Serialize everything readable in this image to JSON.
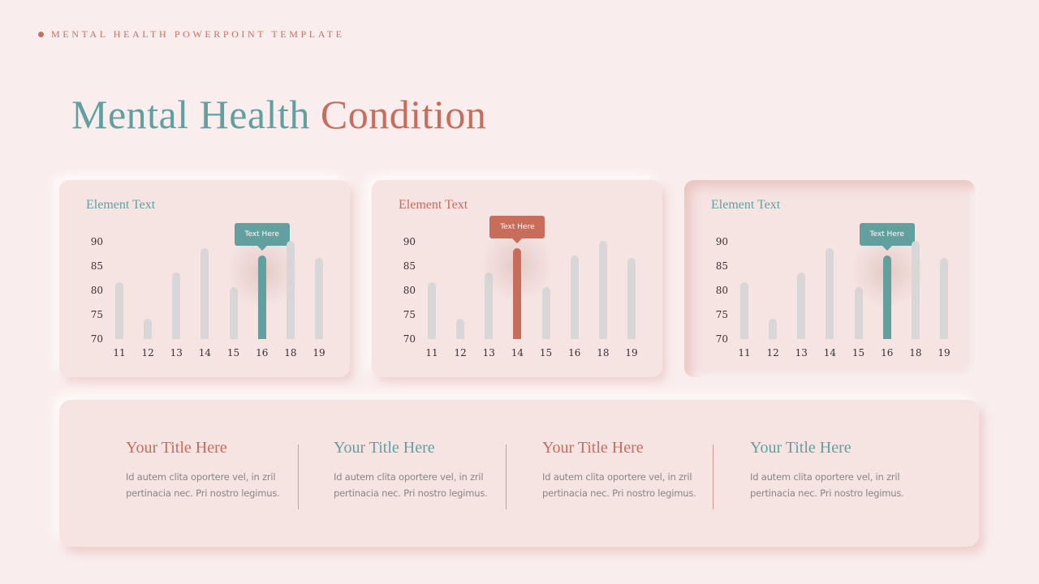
{
  "header": {
    "label": "MENTAL HEALTH POWERPOINT TEMPLATE"
  },
  "title": {
    "part1": "Mental Health",
    "part2": "Condition"
  },
  "colors": {
    "teal": "#62a0a0",
    "coral": "#c86c5c",
    "bar_default": "#d8d6d6",
    "background": "#f9eeed",
    "card": "#f5e4e2"
  },
  "cards": [
    {
      "title": "Element Text",
      "title_color": "teal",
      "tooltip": "Text Here",
      "highlight_index": 5,
      "style": "raised"
    },
    {
      "title": "Element Text",
      "title_color": "coral",
      "tooltip": "Text Here",
      "highlight_index": 3,
      "style": "raised"
    },
    {
      "title": "Element Text",
      "title_color": "teal",
      "tooltip": "Text Here",
      "highlight_index": 5,
      "style": "inset"
    }
  ],
  "chart_data": [
    {
      "type": "bar",
      "title": "Element Text",
      "categories": [
        "11",
        "12",
        "13",
        "14",
        "15",
        "16",
        "18",
        "19"
      ],
      "values": [
        81,
        73.5,
        83,
        88,
        80,
        86.5,
        89.5,
        86
      ],
      "highlight": "16",
      "annotation": "Text Here",
      "yticks": [
        90,
        85,
        80,
        75,
        70
      ],
      "ylim": [
        70,
        90
      ],
      "xlabel": "",
      "ylabel": "",
      "grid": false,
      "legend": null
    },
    {
      "type": "bar",
      "title": "Element Text",
      "categories": [
        "11",
        "12",
        "13",
        "14",
        "15",
        "16",
        "18",
        "19"
      ],
      "values": [
        81,
        73.5,
        83,
        88,
        80,
        86.5,
        89.5,
        86
      ],
      "highlight": "14",
      "annotation": "Text Here",
      "yticks": [
        90,
        85,
        80,
        75,
        70
      ],
      "ylim": [
        70,
        90
      ],
      "xlabel": "",
      "ylabel": "",
      "grid": false,
      "legend": null
    },
    {
      "type": "bar",
      "title": "Element Text",
      "categories": [
        "11",
        "12",
        "13",
        "14",
        "15",
        "16",
        "18",
        "19"
      ],
      "values": [
        81,
        73.5,
        83,
        88,
        80,
        86.5,
        89.5,
        86
      ],
      "highlight": "16",
      "annotation": "Text Here",
      "yticks": [
        90,
        85,
        80,
        75,
        70
      ],
      "ylim": [
        70,
        90
      ],
      "xlabel": "",
      "ylabel": "",
      "grid": false,
      "legend": null
    }
  ],
  "columns": [
    {
      "title": "Your Title Here",
      "color": "coral",
      "body_line1": "Id autem  clita oportere vel, in zril",
      "body_line2": "pertinacia nec. Pri nostro legimus."
    },
    {
      "title": "Your Title Here",
      "color": "teal",
      "body_line1": "Id autem  clita oportere vel, in zril",
      "body_line2": "pertinacia nec. Pri nostro legimus."
    },
    {
      "title": "Your Title Here",
      "color": "coral",
      "body_line1": "Id autem  clita oportere vel, in zril",
      "body_line2": "pertinacia nec. Pri nostro legimus."
    },
    {
      "title": "Your Title Here",
      "color": "teal",
      "body_line1": "Id autem  clita oportere vel, in zril",
      "body_line2": "pertinacia nec. Pri nostro legimus."
    }
  ]
}
